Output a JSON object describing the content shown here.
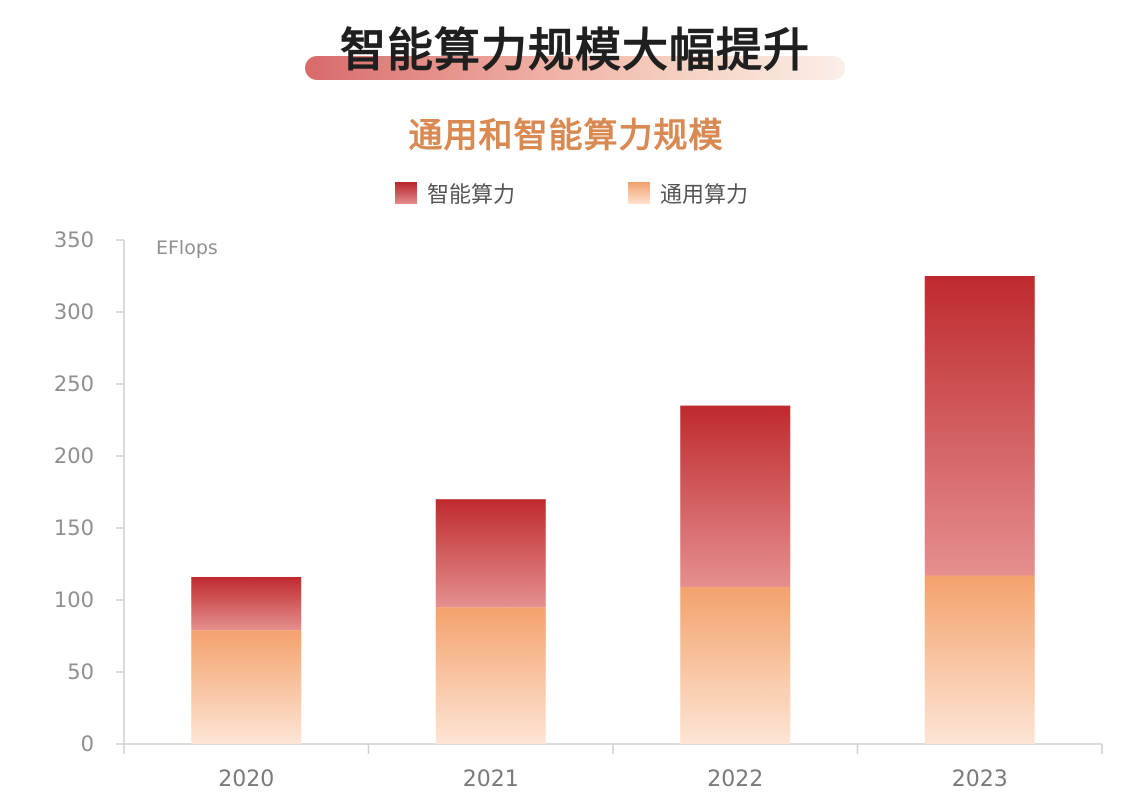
{
  "headline": "智能算力规模大幅提升",
  "chart_data": {
    "type": "bar",
    "stacked": true,
    "title": "通用和智能算力规模",
    "unit": "EFlops",
    "categories": [
      "2020",
      "2021",
      "2022",
      "2023"
    ],
    "series": [
      {
        "name": "智能算力",
        "values": [
          37,
          75,
          126,
          208
        ],
        "color": "#c0302f"
      },
      {
        "name": "通用算力",
        "values": [
          79,
          95,
          109,
          117
        ],
        "color": "#f2a36c"
      }
    ],
    "ylim": [
      0,
      350
    ],
    "yticks": [
      "0",
      "50",
      "100",
      "150",
      "200",
      "250",
      "300",
      "350"
    ],
    "legend": "top-center",
    "grid": false
  }
}
